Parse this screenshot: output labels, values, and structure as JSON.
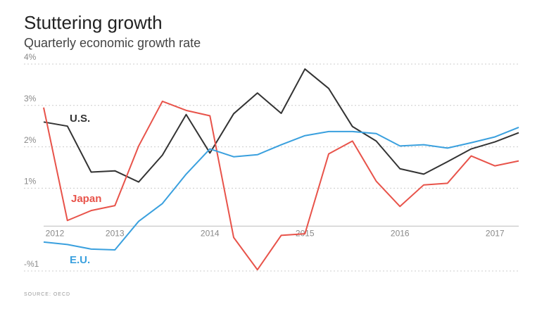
{
  "chart_data": {
    "type": "line",
    "title": "Stuttering growth",
    "subtitle": "Quarterly economic growth rate",
    "source": "SOURCE: OECD",
    "categories": [
      "2012",
      null,
      null,
      "2013",
      null,
      null,
      null,
      "2014",
      null,
      null,
      null,
      "2015",
      null,
      null,
      null,
      "2016",
      null,
      null,
      null,
      "2017",
      null
    ],
    "series": [
      {
        "name": "U.S.",
        "color": "#333333",
        "values": [
          2.6,
          2.5,
          1.39,
          1.42,
          1.15,
          1.8,
          2.78,
          1.85,
          2.8,
          3.3,
          2.81,
          3.88,
          3.41,
          2.49,
          2.14,
          1.47,
          1.34,
          1.64,
          1.95,
          2.12,
          2.34
        ]
      },
      {
        "name": "Japan",
        "color": "#e8534a",
        "values": [
          2.95,
          0.22,
          0.46,
          0.58,
          2.02,
          3.1,
          2.88,
          2.75,
          -0.19,
          -0.97,
          -0.14,
          -0.1,
          1.83,
          2.14,
          1.17,
          0.56,
          1.08,
          1.12,
          1.78,
          1.54,
          1.66
        ]
      },
      {
        "name": "E.U.",
        "color": "#3aa0de",
        "values": [
          -0.3,
          -0.36,
          -0.47,
          -0.49,
          0.2,
          0.63,
          1.34,
          1.95,
          1.76,
          1.81,
          2.05,
          2.27,
          2.37,
          2.37,
          2.32,
          2.02,
          2.05,
          1.97,
          2.1,
          2.24,
          2.47
        ]
      }
    ],
    "ylim": [
      -1,
      4
    ],
    "yticks": [
      {
        "value": 4,
        "label": "4%"
      },
      {
        "value": 3,
        "label": "3%"
      },
      {
        "value": 2,
        "label": "2%"
      },
      {
        "value": 1,
        "label": "1%"
      },
      {
        "value": -1,
        "label": "-%1"
      }
    ],
    "grid": true
  }
}
